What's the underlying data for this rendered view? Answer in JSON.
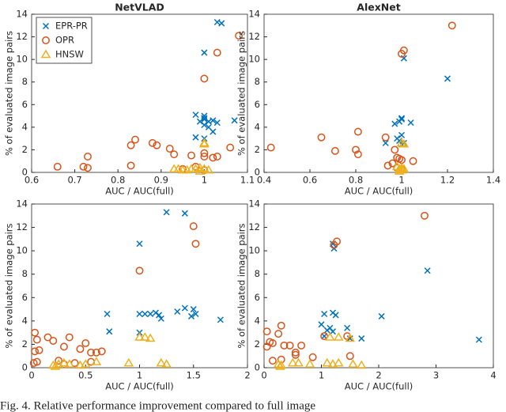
{
  "chart_data": [
    {
      "type": "scatter",
      "title": "NetVLAD",
      "xlabel": "AUC / AUC(full)",
      "ylabel": "% of evaluated image pairs",
      "xlim": [
        0.6,
        1.1
      ],
      "xticks": [
        0.6,
        0.7,
        0.8,
        0.9,
        1,
        1.1
      ],
      "ylim": [
        0,
        14
      ],
      "yticks": [
        0,
        2,
        4,
        6,
        8,
        10,
        12,
        14
      ],
      "legend": "upper left",
      "series": [
        {
          "name": "EPR-PR",
          "color": "#0072bd",
          "marker": "x",
          "x": [
            1.03,
            1.04,
            1.0,
            0.98,
            1.0,
            1.0,
            1.01,
            1.02,
            1.0,
            1.01,
            1.03,
            1.0,
            0.98,
            1.02,
            1.07,
            1.0,
            0.99
          ],
          "values": [
            13.3,
            13.2,
            10.6,
            5.1,
            5.0,
            4.7,
            4.5,
            4.6,
            4.2,
            4.0,
            4.4,
            3.0,
            3.1,
            3.6,
            4.6,
            4.8,
            4.5
          ]
        },
        {
          "name": "OPR",
          "color": "#d95319",
          "marker": "o",
          "x": [
            1.08,
            1.03,
            1.0,
            0.66,
            0.72,
            0.73,
            0.73,
            0.83,
            0.83,
            0.84,
            0.88,
            0.89,
            0.92,
            0.93,
            0.97,
            1.0,
            1.0,
            1.02,
            1.03,
            1.06,
            0.95,
            0.98,
            1.0
          ],
          "values": [
            12.1,
            10.6,
            8.3,
            0.5,
            0.5,
            0.4,
            1.4,
            0.6,
            2.4,
            2.9,
            2.6,
            2.4,
            2.1,
            1.6,
            1.5,
            1.7,
            1.4,
            1.3,
            1.4,
            2.2,
            0.3,
            0.5,
            0.2
          ]
        },
        {
          "name": "HNSW",
          "color": "#edb120",
          "marker": "^",
          "x": [
            1.0,
            1.0,
            0.93,
            0.94,
            0.95,
            0.96,
            0.97,
            0.98,
            0.99,
            1.0,
            1.01,
            0.99
          ],
          "values": [
            2.6,
            2.5,
            0.3,
            0.3,
            0.2,
            0.2,
            0.3,
            0.3,
            0.4,
            0.3,
            0.2,
            0.1
          ]
        }
      ]
    },
    {
      "type": "scatter",
      "title": "AlexNet",
      "xlabel": "AUC / AUC(full)",
      "ylabel": "% of evaluated image pairs",
      "xlim": [
        0.4,
        1.4
      ],
      "xticks": [
        0.4,
        0.6,
        0.8,
        1,
        1.2,
        1.4
      ],
      "ylim": [
        0,
        14
      ],
      "yticks": [
        0,
        2,
        4,
        6,
        8,
        10,
        12,
        14
      ],
      "series": [
        {
          "name": "EPR-PR",
          "color": "#0072bd",
          "marker": "x",
          "x": [
            1.2,
            1.01,
            1.0,
            0.99,
            1.0,
            1.04,
            0.98,
            0.99,
            1.0,
            1.01,
            0.93,
            0.97,
            1.0
          ],
          "values": [
            8.3,
            10.1,
            4.7,
            4.5,
            4.8,
            4.4,
            3.0,
            2.8,
            2.5,
            2.6,
            2.6,
            4.3,
            3.3
          ]
        },
        {
          "name": "OPR",
          "color": "#d95319",
          "marker": "o",
          "x": [
            1.22,
            1.01,
            1.0,
            0.43,
            0.65,
            0.71,
            0.8,
            0.81,
            0.81,
            0.93,
            0.94,
            0.96,
            0.97,
            0.98,
            0.99,
            1.0,
            1.05,
            0.98,
            1.0
          ],
          "values": [
            13.0,
            10.8,
            10.5,
            2.2,
            3.1,
            1.9,
            2.0,
            3.6,
            1.6,
            3.1,
            0.6,
            0.8,
            2.0,
            1.3,
            1.2,
            1.1,
            1.0,
            0.4,
            0.3
          ]
        },
        {
          "name": "HNSW",
          "color": "#edb120",
          "marker": "^",
          "x": [
            1.0,
            1.01,
            0.98,
            0.99,
            1.0,
            1.01,
            0.99,
            1.0
          ],
          "values": [
            2.6,
            2.5,
            0.5,
            0.3,
            0.2,
            0.3,
            0.1,
            0.4
          ]
        }
      ]
    },
    {
      "type": "scatter",
      "xlabel": "AUC / AUC(full)",
      "ylabel": "% of evaluated image pairs",
      "xlim": [
        0,
        2
      ],
      "xticks": [
        0,
        0.5,
        1,
        1.5,
        2
      ],
      "ylim": [
        0,
        14
      ],
      "yticks": [
        0,
        2,
        4,
        6,
        8,
        10,
        12,
        14
      ],
      "series": [
        {
          "name": "EPR-PR",
          "color": "#0072bd",
          "marker": "x",
          "x": [
            1.25,
            1.42,
            1.0,
            0.7,
            0.72,
            1.0,
            1.05,
            1.1,
            1.15,
            1.2,
            1.18,
            1.35,
            1.42,
            1.5,
            1.48,
            1.52,
            1.75,
            1.0
          ],
          "values": [
            13.3,
            13.2,
            10.6,
            4.6,
            3.1,
            4.6,
            4.6,
            4.6,
            4.7,
            4.2,
            4.5,
            4.8,
            5.1,
            5.0,
            4.4,
            4.6,
            4.1,
            3.0
          ]
        },
        {
          "name": "OPR",
          "color": "#d95319",
          "marker": "o",
          "x": [
            1.5,
            1.52,
            1.0,
            0.03,
            0.05,
            0.03,
            0.07,
            0.15,
            0.2,
            0.3,
            0.35,
            0.45,
            0.5,
            0.55,
            0.6,
            0.65,
            0.25,
            0.4,
            0.02,
            0.05,
            0.3,
            0.55
          ],
          "values": [
            12.1,
            10.6,
            8.3,
            3.0,
            2.4,
            1.4,
            1.5,
            2.6,
            2.3,
            1.8,
            2.6,
            1.6,
            2.1,
            1.3,
            1.3,
            1.4,
            0.6,
            0.4,
            0.4,
            0.5,
            0.3,
            0.5
          ]
        },
        {
          "name": "HNSW",
          "color": "#edb120",
          "marker": "^",
          "x": [
            1.0,
            1.05,
            1.1,
            0.2,
            0.25,
            0.3,
            0.35,
            0.45,
            0.5,
            0.6,
            0.9,
            1.2,
            1.25,
            0.22
          ],
          "values": [
            2.6,
            2.6,
            2.5,
            0.2,
            0.3,
            0.4,
            0.3,
            0.2,
            0.3,
            0.5,
            0.4,
            0.4,
            0.3,
            0.1
          ]
        }
      ]
    },
    {
      "type": "scatter",
      "xlabel": "AUC / AUC(full)",
      "ylabel": "% of evaluated image pairs",
      "xlim": [
        0,
        4
      ],
      "xticks": [
        0,
        1,
        2,
        3,
        4
      ],
      "ylim": [
        0,
        14
      ],
      "yticks": [
        0,
        2,
        4,
        6,
        8,
        10,
        12,
        14
      ],
      "series": [
        {
          "name": "EPR-PR",
          "color": "#0072bd",
          "marker": "x",
          "x": [
            2.85,
            1.2,
            1.22,
            3.75,
            2.05,
            1.05,
            1.2,
            1.25,
            1.0,
            1.1,
            1.15,
            1.2,
            1.45,
            1.5,
            1.7,
            1.05
          ],
          "values": [
            8.3,
            10.6,
            10.2,
            2.4,
            4.4,
            4.6,
            4.7,
            4.5,
            3.7,
            3.2,
            3.4,
            3.1,
            3.4,
            2.5,
            2.5,
            2.7
          ]
        },
        {
          "name": "OPR",
          "color": "#d95319",
          "marker": "o",
          "x": [
            2.8,
            1.27,
            1.22,
            0.05,
            0.1,
            0.15,
            0.3,
            0.25,
            0.35,
            0.45,
            0.55,
            0.55,
            0.65,
            0.15,
            0.3,
            0.85,
            1.05,
            1.5,
            0.05,
            1.45
          ],
          "values": [
            13.0,
            10.8,
            10.5,
            3.1,
            2.2,
            2.1,
            3.6,
            2.9,
            1.9,
            1.9,
            1.3,
            1.1,
            1.9,
            0.6,
            0.7,
            0.9,
            2.7,
            1.0,
            1.8,
            2.7
          ]
        },
        {
          "name": "HNSW",
          "color": "#edb120",
          "marker": "^",
          "x": [
            1.15,
            1.3,
            1.5,
            0.25,
            0.3,
            0.5,
            0.6,
            0.8,
            1.1,
            1.2,
            1.3,
            1.55,
            1.7,
            0.28
          ],
          "values": [
            2.6,
            2.6,
            2.5,
            0.3,
            0.2,
            0.4,
            0.4,
            0.3,
            0.4,
            0.3,
            0.4,
            0.3,
            0.2,
            0.1
          ]
        }
      ]
    }
  ],
  "caption": "Fig. 4.    Relative performance improvement compared to full image"
}
